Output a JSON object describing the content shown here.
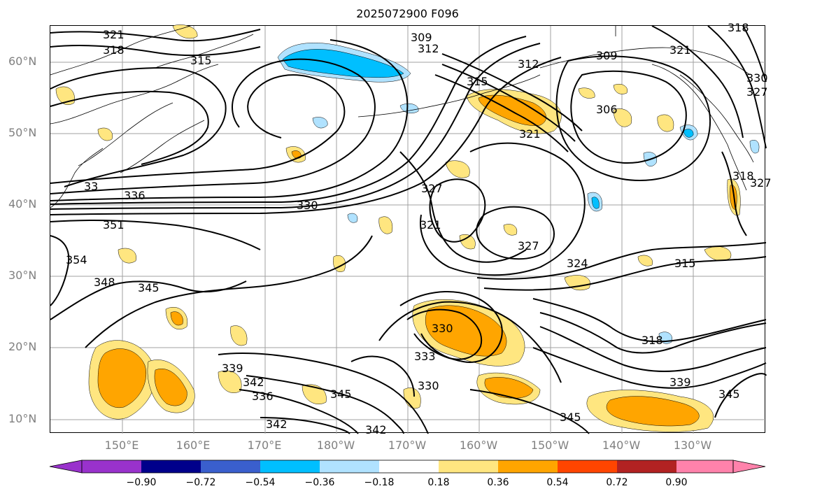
{
  "title": "2025072900 F096",
  "lat_labels": [
    "60°N",
    "50°N",
    "40°N",
    "30°N",
    "20°N",
    "10°N"
  ],
  "lon_labels": [
    "150°E",
    "160°E",
    "170°E",
    "180°W",
    "170°W",
    "160°W",
    "150°W",
    "140°W",
    "130°W"
  ],
  "contour_labels": [
    {
      "text": "321"
    },
    {
      "text": "318"
    },
    {
      "text": "315"
    },
    {
      "text": "309"
    },
    {
      "text": "312"
    },
    {
      "text": "312"
    },
    {
      "text": "309"
    },
    {
      "text": "315"
    },
    {
      "text": "321"
    },
    {
      "text": "306"
    },
    {
      "text": "321"
    },
    {
      "text": "327"
    },
    {
      "text": "330"
    },
    {
      "text": "318"
    },
    {
      "text": "336"
    },
    {
      "text": "330"
    },
    {
      "text": "351"
    },
    {
      "text": "354"
    },
    {
      "text": "348"
    },
    {
      "text": "345"
    },
    {
      "text": "321"
    },
    {
      "text": "327"
    },
    {
      "text": "324"
    },
    {
      "text": "315"
    },
    {
      "text": "330"
    },
    {
      "text": "333"
    },
    {
      "text": "330"
    },
    {
      "text": "339"
    },
    {
      "text": "342"
    },
    {
      "text": "336"
    },
    {
      "text": "345"
    },
    {
      "text": "342"
    },
    {
      "text": "342"
    },
    {
      "text": "345"
    },
    {
      "text": "339"
    },
    {
      "text": "345"
    },
    {
      "text": "318"
    },
    {
      "text": "327"
    },
    {
      "text": "327"
    },
    {
      "text": "318"
    },
    {
      "text": "33"
    }
  ],
  "colorbar": {
    "ticks": [
      "−0.90",
      "−0.72",
      "−0.54",
      "−0.36",
      "−0.18",
      "0.18",
      "0.36",
      "0.54",
      "0.72",
      "0.90"
    ],
    "colors": [
      "#9932cc",
      "#00008b",
      "#3a5fcd",
      "#00bfff",
      "#b0e2ff",
      "#ffffff",
      "#ffe680",
      "#ffa500",
      "#ff4500",
      "#b22222",
      "#ff82ab"
    ]
  },
  "colors": {
    "contour": "#000000",
    "grid": "#a0a0a0",
    "negative_light": "#b0e2ff",
    "negative_mid": "#00bfff",
    "positive_light": "#ffe680",
    "positive_mid": "#ffa500"
  }
}
